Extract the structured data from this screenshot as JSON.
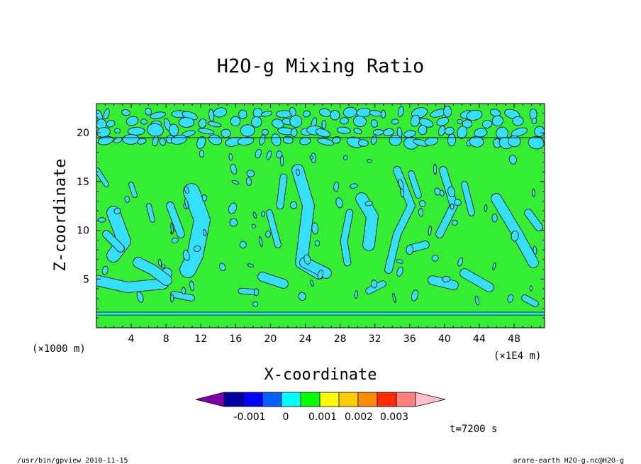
{
  "chart_data": {
    "type": "contour",
    "title": "H2O-g Mixing Ratio",
    "xlabel": "X-coordinate",
    "ylabel": "Z-coordinate",
    "x_unit": "(×1000 m)",
    "x_multiplier": "(×1E4 m)",
    "xlim": [
      0,
      51.5
    ],
    "ylim": [
      0,
      23
    ],
    "x_ticks": [
      4,
      8,
      12,
      16,
      20,
      24,
      28,
      32,
      36,
      40,
      44,
      48
    ],
    "y_ticks": [
      5,
      10,
      15,
      20
    ],
    "colorbar": {
      "levels": [
        -0.003,
        -0.002,
        -0.001,
        0,
        0.001,
        0.002,
        0.003,
        0.004
      ],
      "labels": [
        "-0.001",
        "0",
        "0.001",
        "0.002",
        "0.003"
      ],
      "colors": [
        "#7f00a8",
        "#0000a0",
        "#0000ff",
        "#0060ff",
        "#00ffff",
        "#00ff00",
        "#ffff00",
        "#ffcc00",
        "#ff8c00",
        "#ff2a00",
        "#ff7f7f",
        "#ffc0cb"
      ],
      "extend": "both"
    },
    "fill_colors": {
      "background": "#33ee33",
      "negative": "#33e0ff"
    },
    "band_z": [
      1.3,
      1.6
    ],
    "time_label": "t=7200 s"
  },
  "footer": {
    "left": "/usr/bin/gpview   2010-11-15",
    "right": "arare-earth_H2O-g.nc@H2O-g"
  }
}
